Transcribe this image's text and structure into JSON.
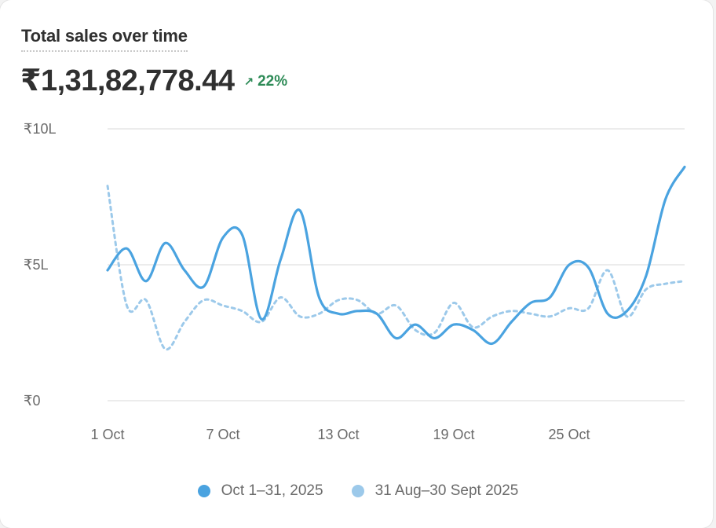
{
  "card": {
    "title": "Total sales over time",
    "total": "₹1,31,82,778.44",
    "change": {
      "icon": "arrow-up-right-icon",
      "value": "22%",
      "color": "#2e8b57"
    }
  },
  "chart_data": {
    "type": "line",
    "title": "Total sales over time",
    "y_ticks": [
      {
        "label": "₹10L",
        "value": 1000000
      },
      {
        "label": "₹5L",
        "value": 500000
      },
      {
        "label": "₹0",
        "value": 0
      }
    ],
    "x_ticks": [
      {
        "label": "1 Oct",
        "day": 1
      },
      {
        "label": "7 Oct",
        "day": 7
      },
      {
        "label": "13 Oct",
        "day": 13
      },
      {
        "label": "19 Oct",
        "day": 19
      },
      {
        "label": "25 Oct",
        "day": 25
      }
    ],
    "ylim": [
      0,
      1000000
    ],
    "grid": true,
    "legend_position": "bottom",
    "series": [
      {
        "name": "Oct 1–31, 2025",
        "color": "#4aa3e0",
        "style": "solid",
        "x": [
          1,
          2,
          3,
          4,
          5,
          6,
          7,
          8,
          9,
          10,
          11,
          12,
          13,
          14,
          15,
          16,
          17,
          18,
          19,
          20,
          21,
          22,
          23,
          24,
          25,
          26,
          27,
          28,
          29,
          30,
          31
        ],
        "values": [
          480000,
          560000,
          440000,
          580000,
          480000,
          420000,
          600000,
          610000,
          300000,
          520000,
          700000,
          380000,
          320000,
          330000,
          320000,
          230000,
          280000,
          230000,
          280000,
          260000,
          210000,
          290000,
          360000,
          380000,
          500000,
          490000,
          320000,
          330000,
          460000,
          740000,
          860000
        ]
      },
      {
        "name": "31 Aug–30 Sept 2025",
        "color": "#9cc9ea",
        "style": "dashed",
        "x": [
          1,
          2,
          3,
          4,
          5,
          6,
          7,
          8,
          9,
          10,
          11,
          12,
          13,
          14,
          15,
          16,
          17,
          18,
          19,
          20,
          21,
          22,
          23,
          24,
          25,
          26,
          27,
          28,
          29,
          30,
          31
        ],
        "values": [
          790000,
          350000,
          370000,
          190000,
          290000,
          370000,
          350000,
          330000,
          290000,
          380000,
          310000,
          320000,
          370000,
          370000,
          320000,
          350000,
          260000,
          250000,
          360000,
          270000,
          310000,
          330000,
          320000,
          310000,
          340000,
          340000,
          480000,
          310000,
          410000,
          430000,
          440000
        ]
      }
    ]
  }
}
